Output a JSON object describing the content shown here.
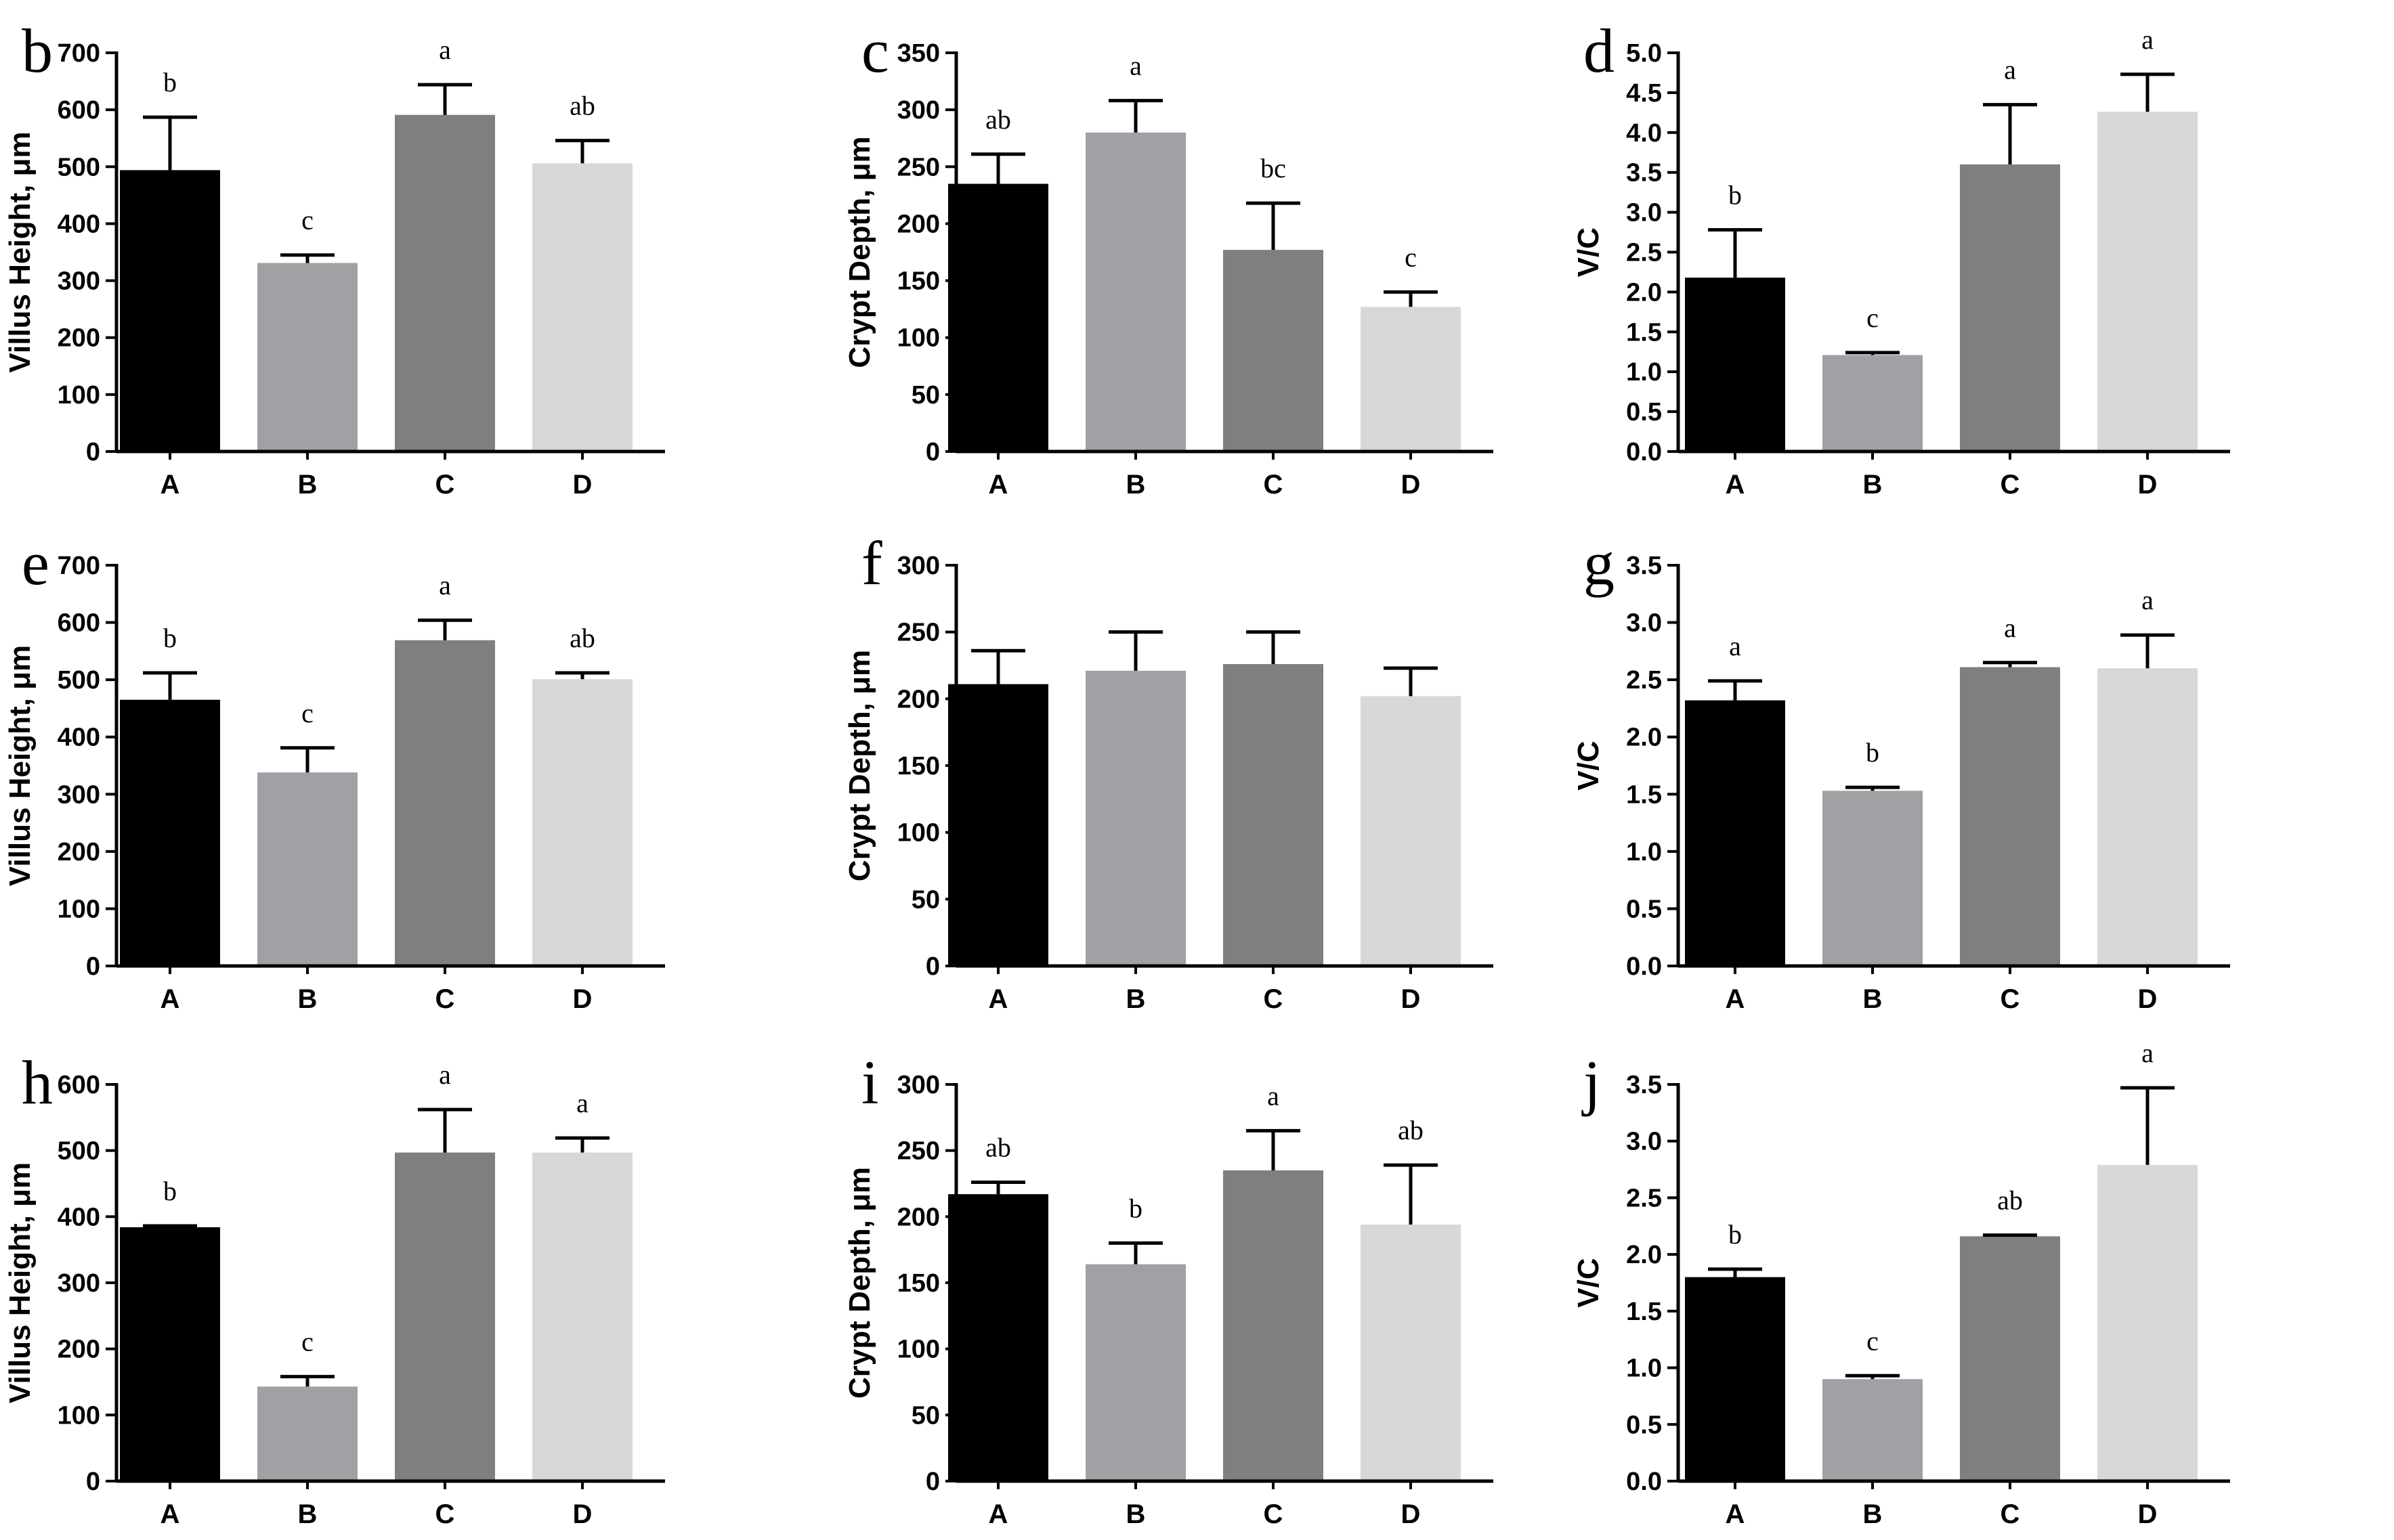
{
  "colors": {
    "A": "#000000",
    "B": "#a0a0a5",
    "C": "#7f7f7f",
    "D": "#d8d8d8",
    "axis": "#000000"
  },
  "chart_data": [
    {
      "panel": "b",
      "type": "bar",
      "ylabel": "Villus Height, μm",
      "categories": [
        "A",
        "B",
        "C",
        "D"
      ],
      "values": [
        494,
        331,
        591,
        506
      ],
      "errors": [
        93,
        14,
        53,
        40
      ],
      "sig": [
        "b",
        "c",
        "a",
        "ab"
      ],
      "ylim": [
        0,
        700
      ],
      "ticks": [
        "0",
        "100",
        "200",
        "300",
        "400",
        "500",
        "600",
        "700"
      ]
    },
    {
      "panel": "c",
      "type": "bar",
      "ylabel": "Crypt Depth, μm",
      "categories": [
        "A",
        "B",
        "C",
        "D"
      ],
      "values": [
        235,
        280,
        177,
        127
      ],
      "errors": [
        26,
        28,
        41,
        13
      ],
      "sig": [
        "ab",
        "a",
        "bc",
        "c"
      ],
      "ylim": [
        0,
        350
      ],
      "ticks": [
        "0",
        "50",
        "100",
        "150",
        "200",
        "250",
        "300",
        "350"
      ]
    },
    {
      "panel": "d",
      "type": "bar",
      "ylabel": "V/C",
      "categories": [
        "A",
        "B",
        "C",
        "D"
      ],
      "values": [
        2.18,
        1.21,
        3.6,
        4.26
      ],
      "errors": [
        0.6,
        0.03,
        0.75,
        0.47
      ],
      "sig": [
        "b",
        "c",
        "a",
        "a"
      ],
      "ylim": [
        0,
        5.0
      ],
      "ticks": [
        "0.0",
        "0.5",
        "1.0",
        "1.5",
        "2.0",
        "2.5",
        "3.0",
        "3.5",
        "4.0",
        "4.5",
        "5.0"
      ]
    },
    {
      "panel": "e",
      "type": "bar",
      "ylabel": "Villus Height, μm",
      "categories": [
        "A",
        "B",
        "C",
        "D"
      ],
      "values": [
        465,
        338,
        569,
        501
      ],
      "errors": [
        47,
        43,
        35,
        11
      ],
      "sig": [
        "b",
        "c",
        "a",
        "ab"
      ],
      "ylim": [
        0,
        700
      ],
      "ticks": [
        "0",
        "100",
        "200",
        "300",
        "400",
        "500",
        "600",
        "700"
      ]
    },
    {
      "panel": "f",
      "type": "bar",
      "ylabel": "Crypt Depth, μm",
      "categories": [
        "A",
        "B",
        "C",
        "D"
      ],
      "values": [
        211,
        221,
        226,
        202
      ],
      "errors": [
        25,
        29,
        24,
        21
      ],
      "sig": [
        "",
        "",
        "",
        ""
      ],
      "ylim": [
        0,
        300
      ],
      "ticks": [
        "0",
        "50",
        "100",
        "150",
        "200",
        "250",
        "300"
      ]
    },
    {
      "panel": "g",
      "type": "bar",
      "ylabel": "V/C",
      "categories": [
        "A",
        "B",
        "C",
        "D"
      ],
      "values": [
        2.32,
        1.53,
        2.61,
        2.6
      ],
      "errors": [
        0.17,
        0.03,
        0.04,
        0.29
      ],
      "sig": [
        "a",
        "b",
        "a",
        "a"
      ],
      "ylim": [
        0,
        3.5
      ],
      "ticks": [
        "0.0",
        "0.5",
        "1.0",
        "1.5",
        "2.0",
        "2.5",
        "3.0",
        "3.5"
      ]
    },
    {
      "panel": "h",
      "type": "bar",
      "ylabel": "Villus Height, μm",
      "categories": [
        "A",
        "B",
        "C",
        "D"
      ],
      "values": [
        384,
        143,
        497,
        497
      ],
      "errors": [
        2,
        15,
        65,
        22
      ],
      "sig": [
        "b",
        "c",
        "a",
        "a"
      ],
      "ylim": [
        0,
        600
      ],
      "ticks": [
        "0",
        "100",
        "200",
        "300",
        "400",
        "500",
        "600"
      ]
    },
    {
      "panel": "i",
      "type": "bar",
      "ylabel": "Crypt Depth, μm",
      "categories": [
        "A",
        "B",
        "C",
        "D"
      ],
      "values": [
        217,
        164,
        235,
        194
      ],
      "errors": [
        9,
        16,
        30,
        45
      ],
      "sig": [
        "ab",
        "b",
        "a",
        "ab"
      ],
      "ylim": [
        0,
        300
      ],
      "ticks": [
        "0",
        "50",
        "100",
        "150",
        "200",
        "250",
        "300"
      ]
    },
    {
      "panel": "j",
      "type": "bar",
      "ylabel": "V/C",
      "categories": [
        "A",
        "B",
        "C",
        "D"
      ],
      "values": [
        1.8,
        0.9,
        2.16,
        2.79
      ],
      "errors": [
        0.07,
        0.03,
        0.01,
        0.68
      ],
      "sig": [
        "b",
        "c",
        "ab",
        "a"
      ],
      "ylim": [
        0,
        3.5
      ],
      "ticks": [
        "0.0",
        "0.5",
        "1.0",
        "1.5",
        "2.0",
        "2.5",
        "3.0",
        "3.5"
      ]
    }
  ]
}
